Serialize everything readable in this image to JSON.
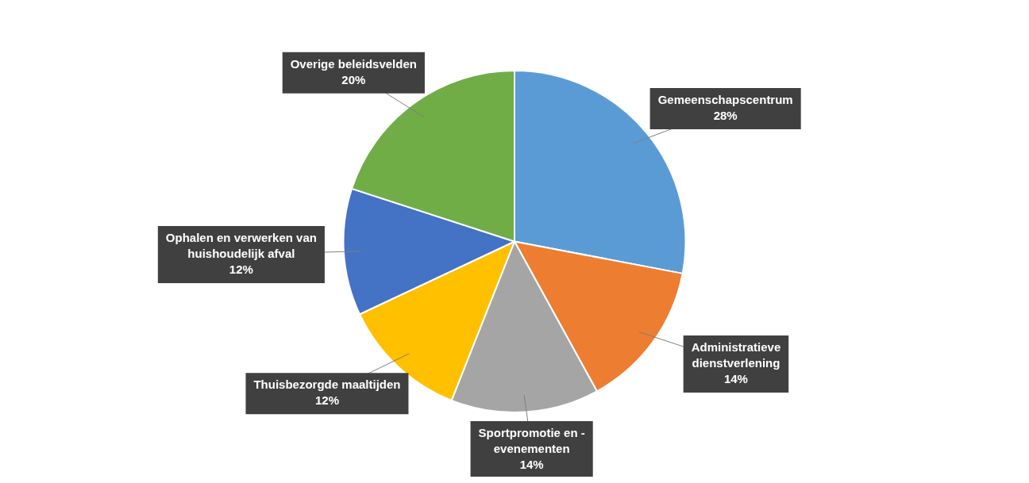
{
  "chart_data": {
    "type": "pie",
    "categories": [
      "Gemeenschapscentrum",
      "Administratieve dienstverlening",
      "Sportpromotie en - evenementen",
      "Thuisbezorgde maaltijden",
      "Ophalen en verwerken van huishoudelijk afval",
      "Overige beleidsvelden"
    ],
    "values": [
      28,
      14,
      14,
      12,
      12,
      20
    ],
    "colors": [
      "#5b9bd5",
      "#ed7d31",
      "#a5a5a5",
      "#ffc000",
      "#4472c4",
      "#70ad47"
    ],
    "value_labels": [
      "28%",
      "14%",
      "14%",
      "12%",
      "12%",
      "20%"
    ],
    "legend": false
  }
}
